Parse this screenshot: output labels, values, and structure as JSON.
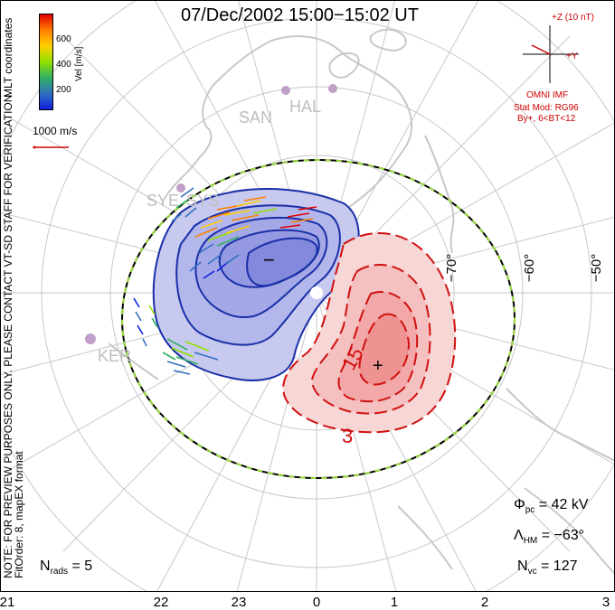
{
  "title": "07/Dec/2002 15:00−15:02 UT",
  "colorbar": {
    "title": "Vel [m/s]",
    "ticks": [
      "600",
      "400",
      "200"
    ],
    "colors": [
      "#e00000",
      "#ff7f00",
      "#ffd000",
      "#90e000",
      "#30b060",
      "#3070c0",
      "#1020e0"
    ]
  },
  "coords_label": "MLT coordinates",
  "scale_vector_label": "1000 m/s",
  "imf": {
    "top_label": "+Z (10 nT)",
    "y_label": "+Y",
    "source": "OMNI IMF",
    "model_line1": "Stat Mod: RG96",
    "model_line2": "By+, 6<BT<12"
  },
  "stations": [
    "SAN",
    "HAL",
    "SYE",
    "SYS",
    "KER"
  ],
  "latitude_labels": [
    "−70°",
    "−60°",
    "−50°"
  ],
  "mlt_labels": [
    "21",
    "22",
    "23",
    "0",
    "1",
    "2",
    "3"
  ],
  "contours": {
    "negative_cell": {
      "symbol": "−",
      "color": "#1a2fa8",
      "fill": "#8f95e0"
    },
    "positive_cell": {
      "symbol": "+",
      "color": "#d01010",
      "fill": "#f29090",
      "labels": [
        "15",
        "3"
      ]
    }
  },
  "stats": {
    "phi_pc_label": "Φ",
    "phi_pc_sub": "pc",
    "phi_pc_value": "= 42 kV",
    "lambda_hm_label": "Λ",
    "lambda_hm_sub": "HM",
    "lambda_hm_value": "= −63°",
    "n_vc_label": "N",
    "n_vc_sub": "vc",
    "n_vc_value": "= 127",
    "n_rads_label": "N",
    "n_rads_sub": "rads",
    "n_rads_value": "= 5"
  },
  "watermark": "NOTE: FOR PREVIEW PURPOSES ONLY. PLEASE CONTACT VT-SD STAFF FOR VERIFICATION.",
  "fit_info": "FitOrder: 8, mapEX format"
}
